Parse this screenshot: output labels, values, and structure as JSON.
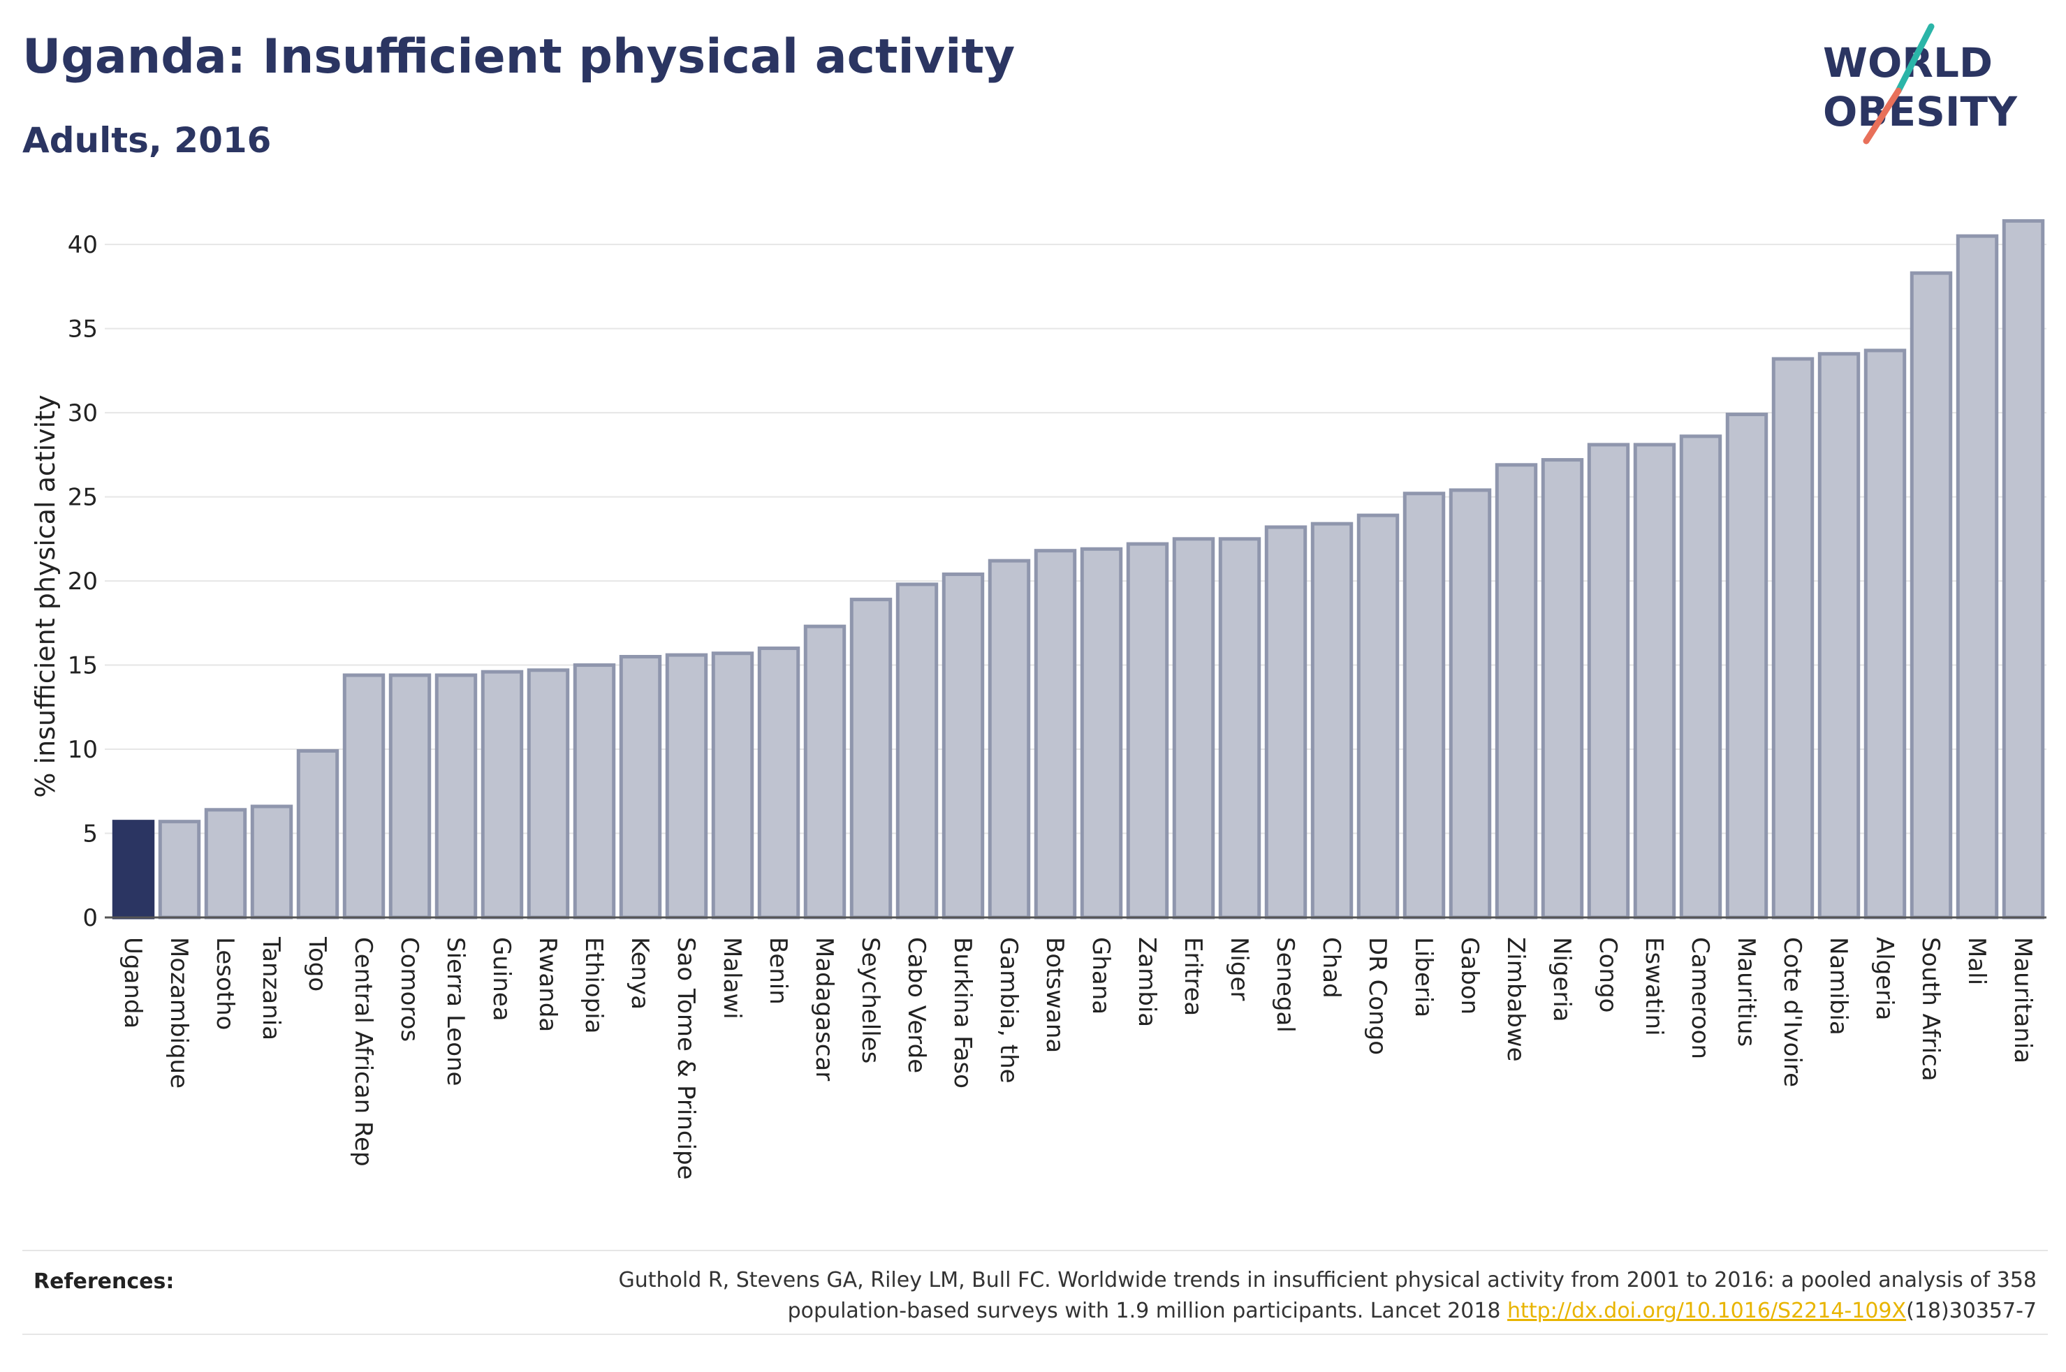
{
  "title": "Uganda: Insufficient physical activity",
  "subtitle": "Adults, 2016",
  "logo": {
    "line1": "WORLD",
    "line2": "OBESITY",
    "text_color": "#2b3562",
    "accent_teal": "#2bb5a8",
    "accent_coral": "#e8705a"
  },
  "colors": {
    "highlight": "#2b3562",
    "bar_fill": "#bfc3d0",
    "bar_stroke": "#8f96ad"
  },
  "references": {
    "label": "References:",
    "text_before": "Guthold R, Stevens GA, Riley LM, Bull FC. Worldwide trends in insufficient physical activity from 2001 to 2016: a pooled analysis of 358 population-based surveys with 1.9 million participants. Lancet 2018 ",
    "link_text": "http://dx.doi.org/10.1016/S2214-109X",
    "text_after": "(18)30357-7"
  },
  "chart_data": {
    "type": "bar",
    "ylabel": "% insufficient physical activity",
    "ylim": [
      0,
      41.5
    ],
    "yticks": [
      0,
      5,
      10,
      15,
      20,
      25,
      30,
      35,
      40
    ],
    "grid": true,
    "highlight_category": "Uganda",
    "categories": [
      "Uganda",
      "Mozambique",
      "Lesotho",
      "Tanzania",
      "Togo",
      "Central African Rep",
      "Comoros",
      "Sierra Leone",
      "Guinea",
      "Rwanda",
      "Ethiopia",
      "Kenya",
      "Sao Tome & Principe",
      "Malawi",
      "Benin",
      "Madagascar",
      "Seychelles",
      "Cabo Verde",
      "Burkina Faso",
      "Gambia, the",
      "Botswana",
      "Ghana",
      "Zambia",
      "Eritrea",
      "Niger",
      "Senegal",
      "Chad",
      "DR Congo",
      "Liberia",
      "Gabon",
      "Zimbabwe",
      "Nigeria",
      "Congo",
      "Eswatini",
      "Cameroon",
      "Mauritius",
      "Cote d'Ivoire",
      "Namibia",
      "Algeria",
      "South Africa",
      "Mali",
      "Mauritania"
    ],
    "values": [
      5.7,
      5.7,
      6.4,
      6.6,
      9.9,
      14.4,
      14.4,
      14.4,
      14.6,
      14.7,
      15.0,
      15.5,
      15.6,
      15.7,
      16.0,
      17.3,
      18.9,
      19.8,
      20.4,
      21.2,
      21.8,
      21.9,
      22.2,
      22.5,
      22.5,
      23.2,
      23.4,
      23.9,
      25.2,
      25.4,
      26.9,
      27.2,
      28.1,
      28.1,
      28.6,
      29.9,
      33.2,
      33.5,
      33.7,
      38.3,
      40.5,
      41.4
    ]
  }
}
